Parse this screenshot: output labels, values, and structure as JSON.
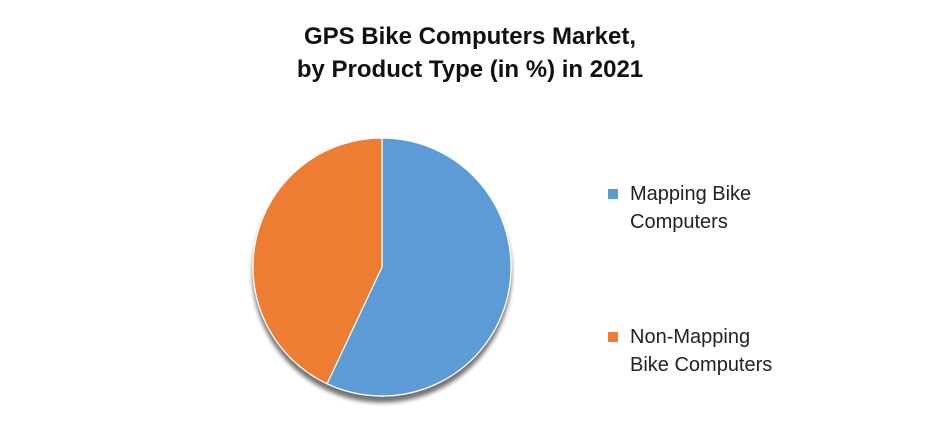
{
  "chart_data": {
    "type": "pie",
    "title": [
      "GPS Bike Computers Market,",
      "by Product Type (in %) in 2021"
    ],
    "slices": [
      {
        "name_lines": [
          "Mapping Bike",
          "Computers"
        ],
        "value": 57,
        "color": "#5B9BD5"
      },
      {
        "name_lines": [
          "Non-Mapping",
          "Bike Computers"
        ],
        "value": 43,
        "color": "#ED7D31"
      }
    ],
    "legend_position": "right"
  }
}
